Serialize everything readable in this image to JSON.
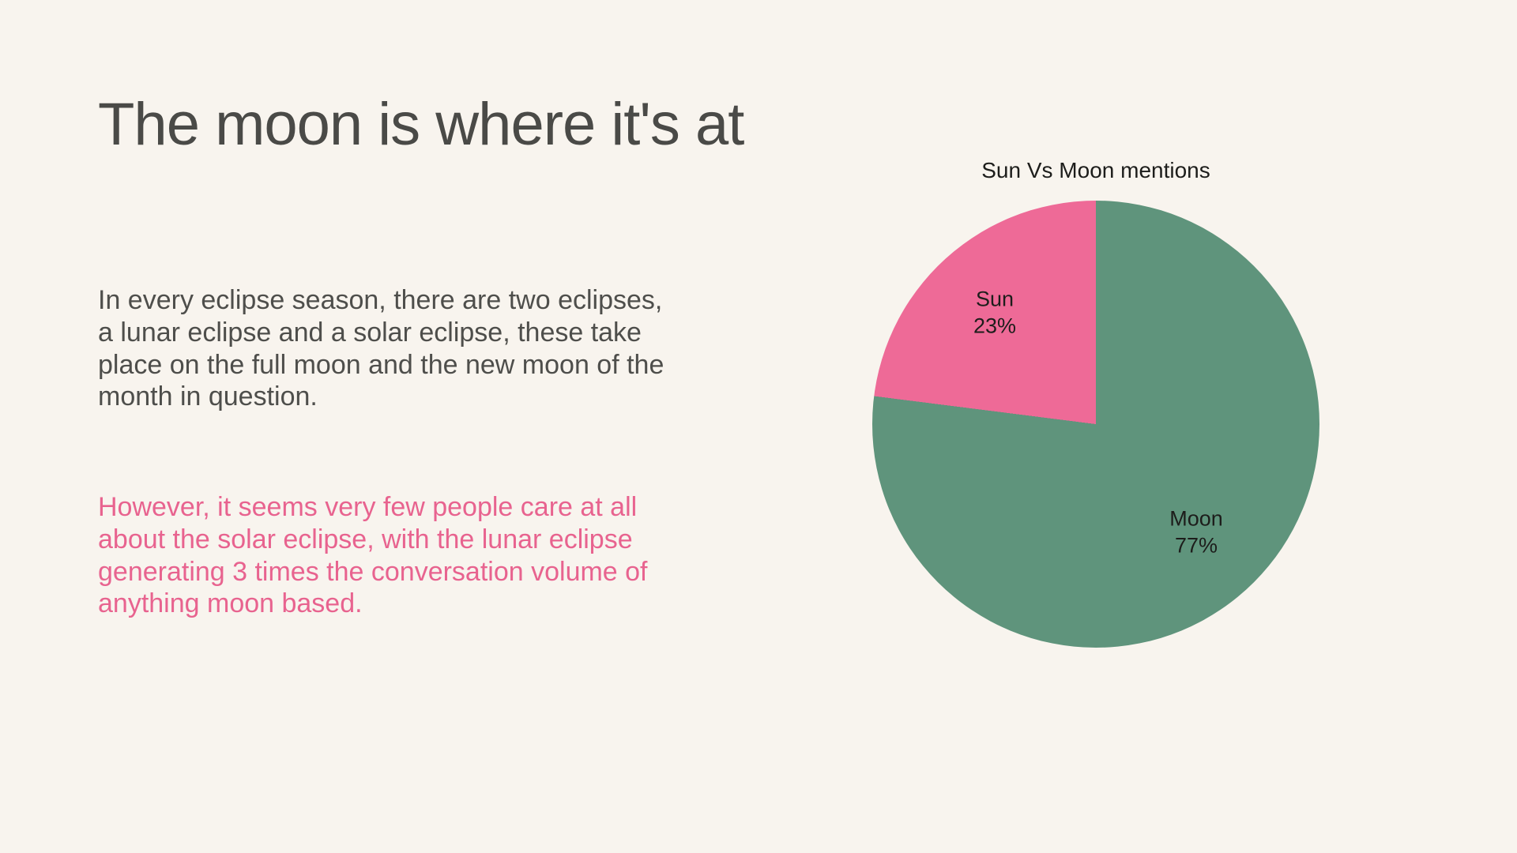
{
  "slide": {
    "title": "The moon is where it's at",
    "paragraph_primary": "In every eclipse season, there are two eclipses, a lunar eclipse and a solar eclipse, these take place on the full moon and the new moon of the month in question.",
    "paragraph_accent": "However, it seems very few people care at all about the solar eclipse, with the lunar eclipse generating 3 times the conversation volume of anything moon based."
  },
  "colors": {
    "background": "#f8f4ee",
    "title_text": "#4a4a47",
    "body_text": "#4e4e4b",
    "accent_pink_text": "#e8638f",
    "pie_pink": "#ee6a97",
    "pie_green": "#5f947c",
    "chart_label_text": "#1d1d1b"
  },
  "chart_data": {
    "type": "pie",
    "title": "Sun Vs Moon mentions",
    "labels": [
      "Sun",
      "Moon"
    ],
    "values": [
      23,
      77
    ],
    "value_labels": [
      "23%",
      "77%"
    ],
    "colors": [
      "#ee6a97",
      "#5f947c"
    ],
    "draw_order": [
      1,
      0
    ],
    "start_angle": "top",
    "direction": "clockwise",
    "legend": "none",
    "labels_inside_slices": true
  }
}
